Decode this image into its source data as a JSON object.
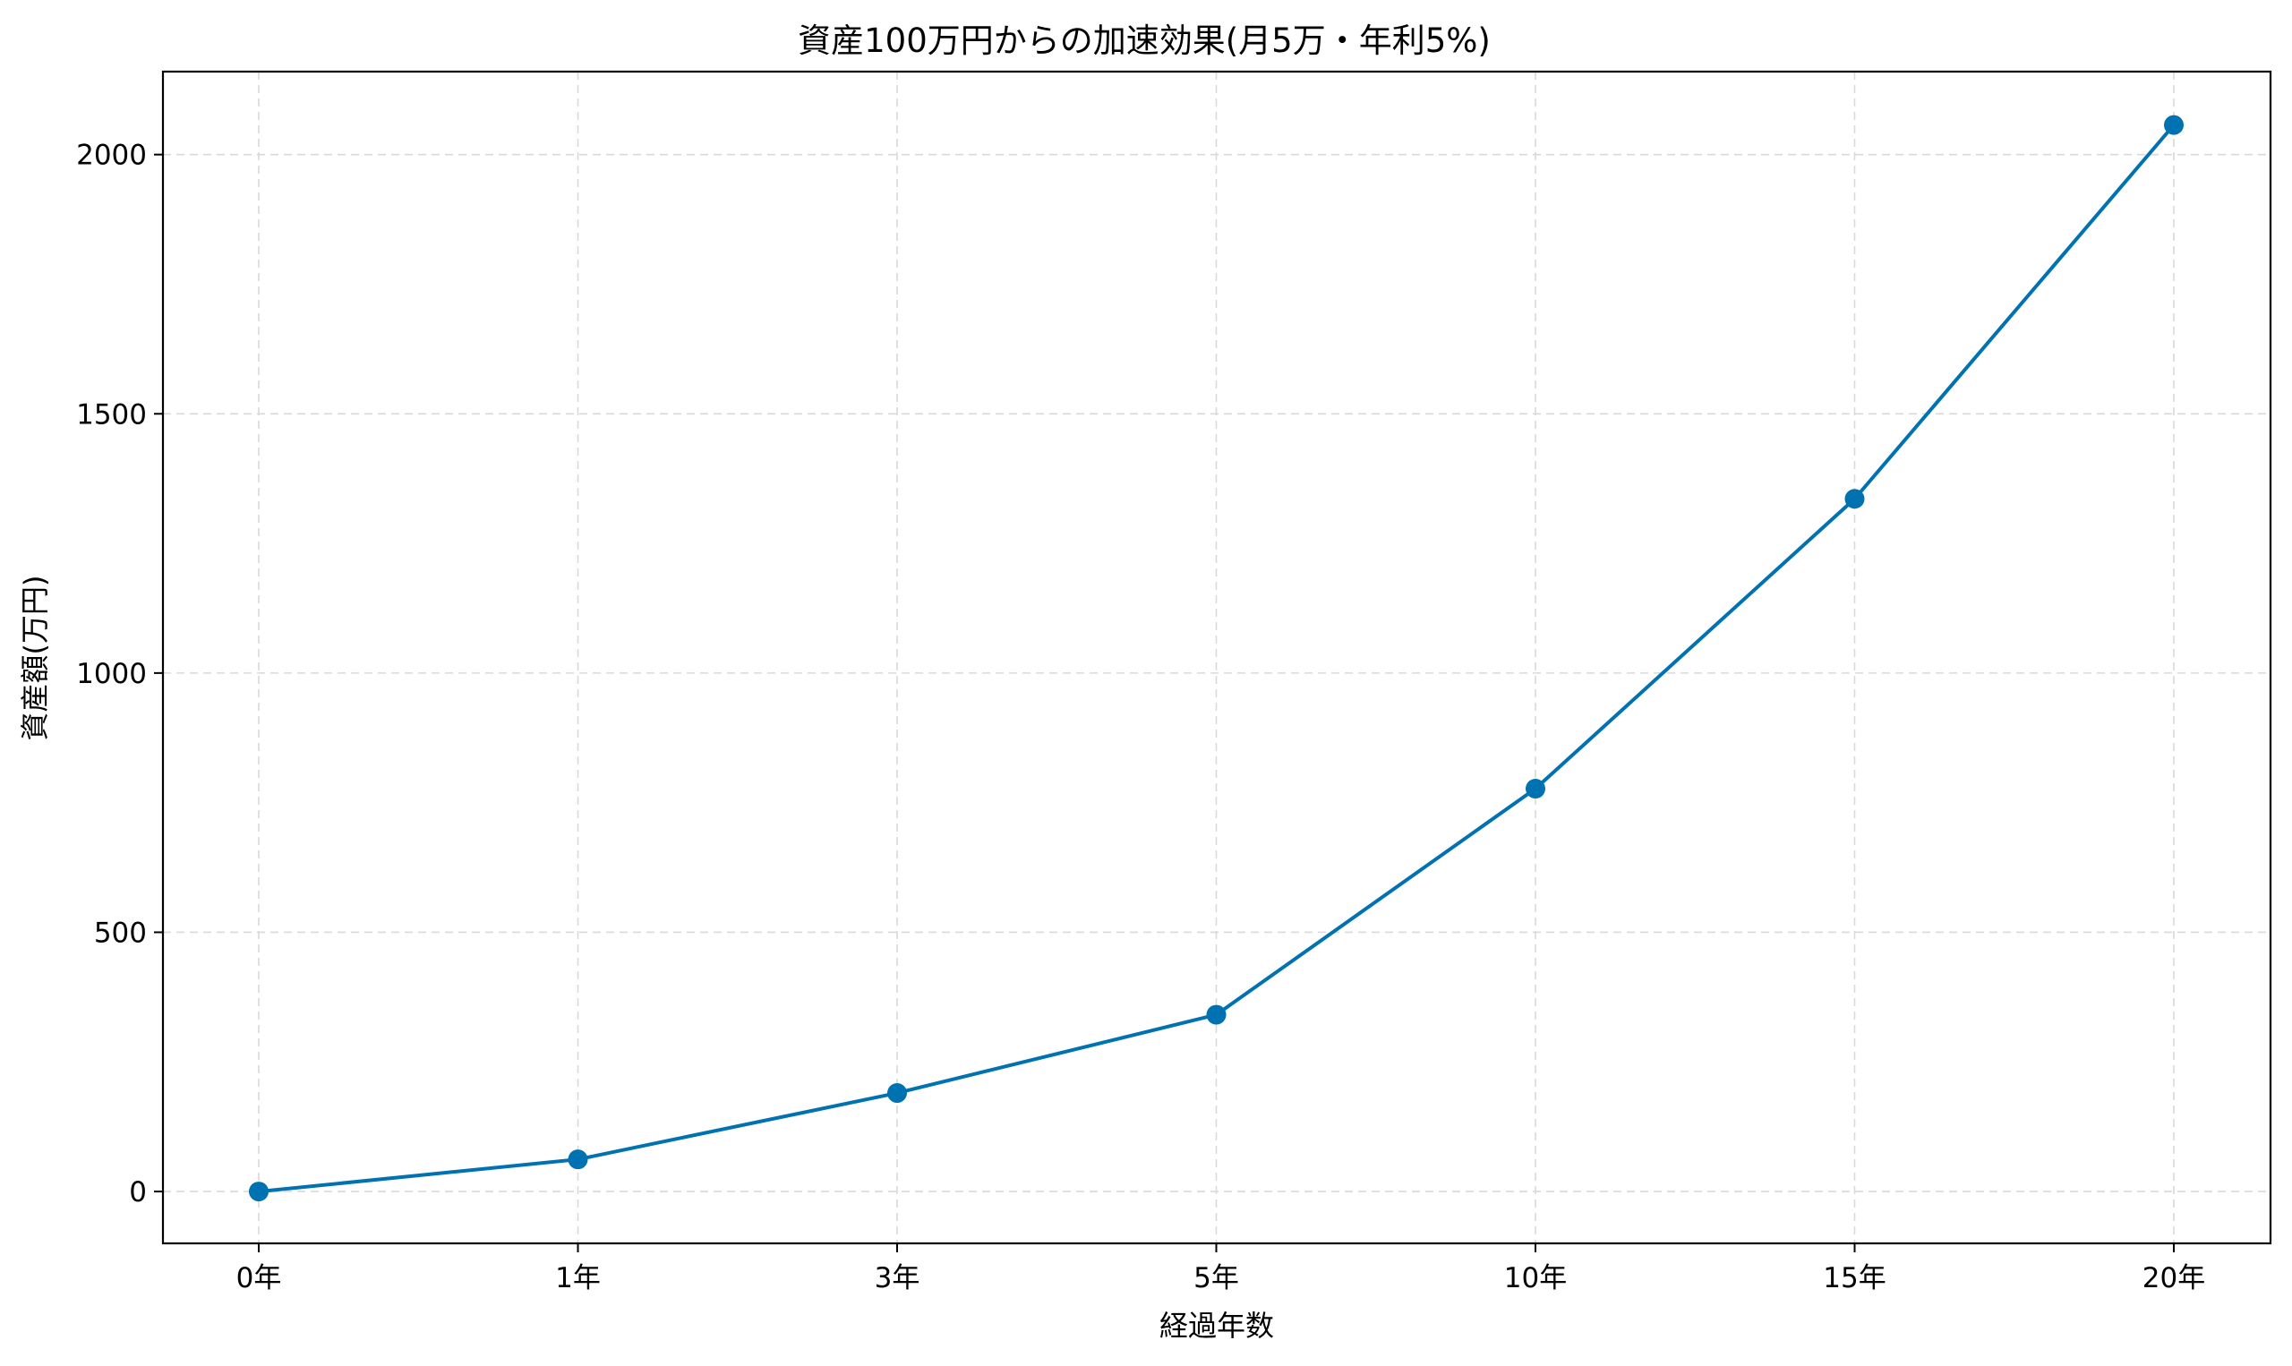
{
  "chart_data": {
    "type": "line",
    "title": "資産100万円からの加速効果(月5万・年利5%)",
    "xlabel": "経過年数",
    "ylabel": "資産額(万円)",
    "categories": [
      "0年",
      "1年",
      "3年",
      "5年",
      "10年",
      "15年",
      "20年"
    ],
    "values": [
      0,
      62,
      190,
      341,
      777,
      1336,
      2057
    ],
    "ylim": [
      -100,
      2160
    ],
    "yticks": [
      0,
      500,
      1000,
      1500,
      2000
    ],
    "grid": true,
    "line_color": "#0072b2",
    "marker": "circle"
  }
}
